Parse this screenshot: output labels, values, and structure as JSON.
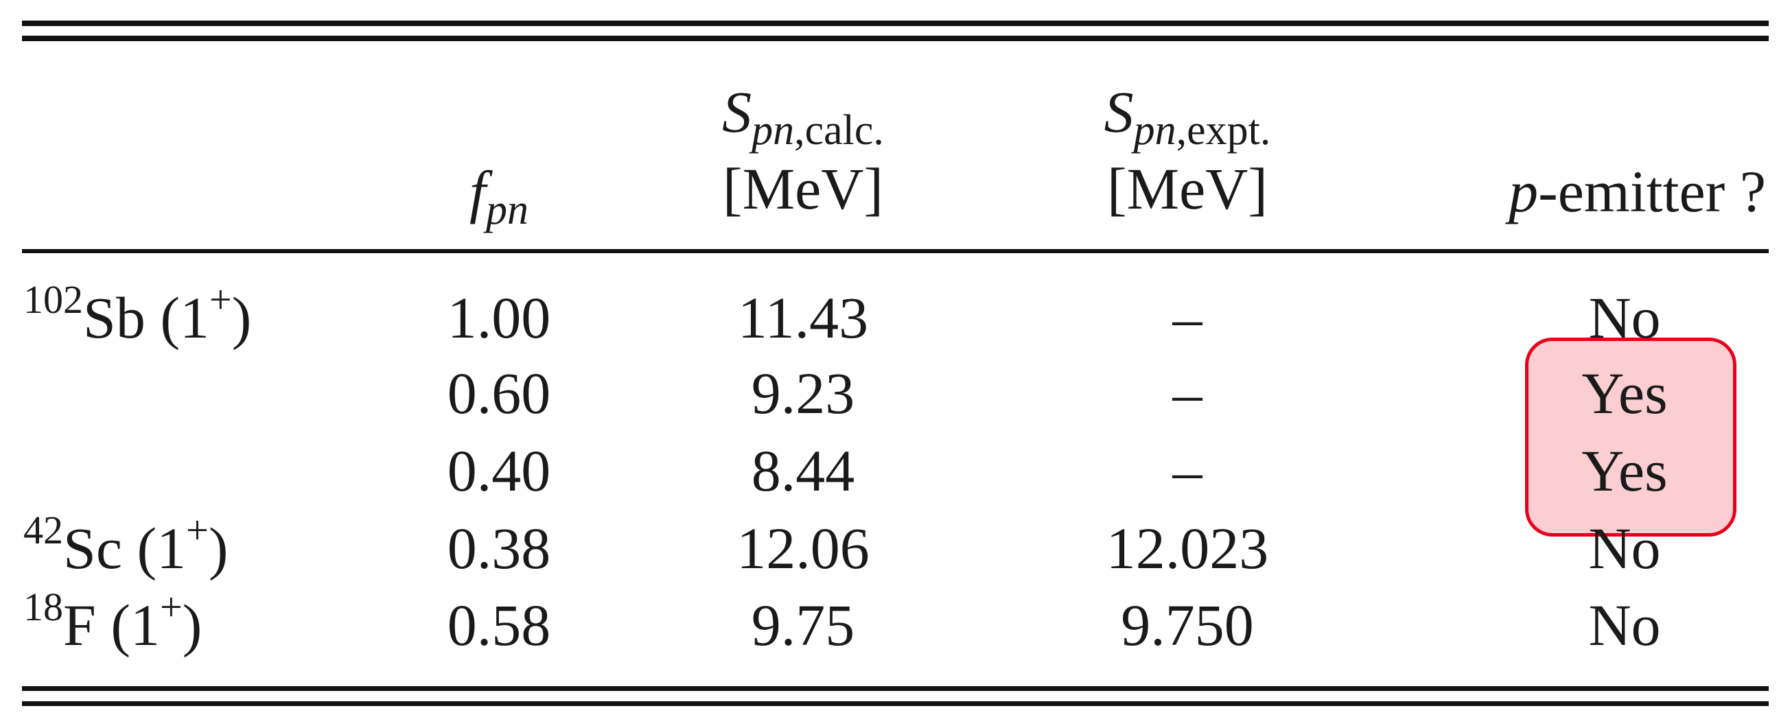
{
  "header": {
    "col_fpn": {
      "main": "f",
      "sub": "pn"
    },
    "col_calc": {
      "main": "S",
      "sub_italic": "pn",
      "sub_rest": ",calc.",
      "unit": "[MeV]"
    },
    "col_expt": {
      "main": "S",
      "sub_italic": "pn",
      "sub_rest": ",expt.",
      "unit": "[MeV]"
    },
    "col_emitter": {
      "italic": "p",
      "rest": "-emitter ?"
    }
  },
  "rows": [
    {
      "nucleus_mass": "102",
      "nucleus_symbol": "Sb",
      "spin_open": " (1",
      "spin_sup": "+",
      "spin_close": ")",
      "fpn": "1.00",
      "s_calc": "11.43",
      "s_expt": "–",
      "p_emitter": "No"
    },
    {
      "nucleus_mass": "",
      "nucleus_symbol": "",
      "spin_open": "",
      "spin_sup": "",
      "spin_close": "",
      "fpn": "0.60",
      "s_calc": "9.23",
      "s_expt": "–",
      "p_emitter": "Yes"
    },
    {
      "nucleus_mass": "",
      "nucleus_symbol": "",
      "spin_open": "",
      "spin_sup": "",
      "spin_close": "",
      "fpn": "0.40",
      "s_calc": "8.44",
      "s_expt": "–",
      "p_emitter": "Yes"
    },
    {
      "nucleus_mass": "42",
      "nucleus_symbol": "Sc",
      "spin_open": " (1",
      "spin_sup": "+",
      "spin_close": ")",
      "fpn": "0.38",
      "s_calc": "12.06",
      "s_expt": "12.023",
      "p_emitter": "No"
    },
    {
      "nucleus_mass": "18",
      "nucleus_symbol": "F",
      "spin_open": " (1",
      "spin_sup": "+",
      "spin_close": ")",
      "fpn": "0.58",
      "s_calc": "9.75",
      "s_expt": "9.750",
      "p_emitter": "No"
    }
  ],
  "annotation": {
    "highlight_color": "#e8001a",
    "highlighted_rows": [
      1,
      2
    ],
    "highlighted_column": "p-emitter ?"
  }
}
